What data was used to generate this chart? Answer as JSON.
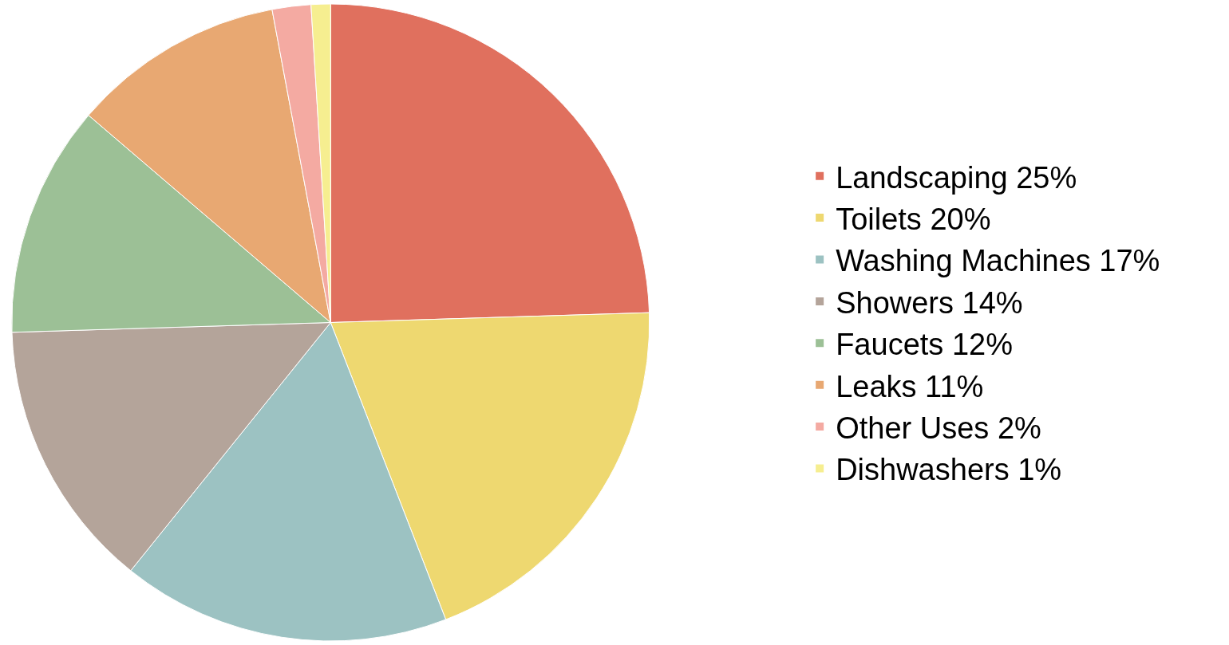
{
  "chart_data": {
    "type": "pie",
    "categories": [
      "Landscaping 25%",
      "Toilets 20%",
      "Washing Machines 17%",
      "Showers 14%",
      "Faucets 12%",
      "Leaks 11%",
      "Other Uses 2%",
      "Dishwashers 1%"
    ],
    "values": [
      25,
      20,
      17,
      14,
      12,
      11,
      2,
      1
    ],
    "colors": [
      "#e0705e",
      "#eed870",
      "#9cc2c2",
      "#b4a49a",
      "#9cc096",
      "#e8a872",
      "#f4aaa2",
      "#f6ee90"
    ],
    "legend": "right"
  }
}
